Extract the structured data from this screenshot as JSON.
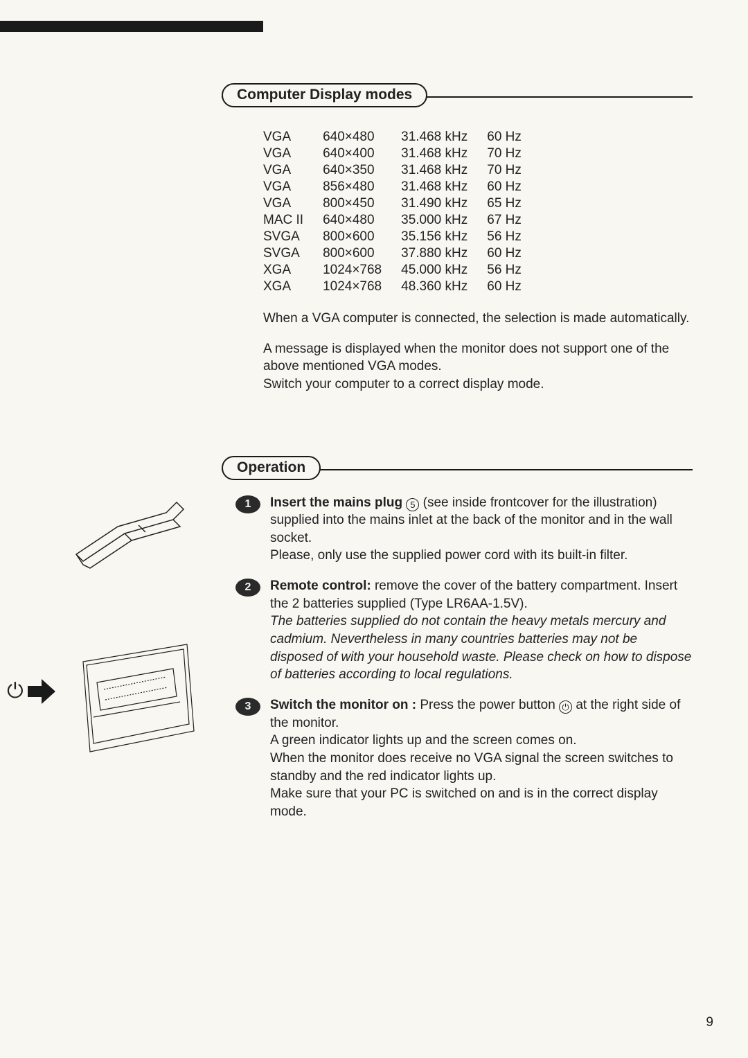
{
  "page_number": "9",
  "section1": {
    "title": "Computer Display modes",
    "table": {
      "rows": [
        [
          "VGA",
          "640×480",
          "31.468 kHz",
          "60 Hz"
        ],
        [
          "VGA",
          "640×400",
          "31.468 kHz",
          "70 Hz"
        ],
        [
          "VGA",
          "640×350",
          "31.468 kHz",
          "70 Hz"
        ],
        [
          "VGA",
          "856×480",
          "31.468 kHz",
          "60 Hz"
        ],
        [
          "VGA",
          "800×450",
          "31.490 kHz",
          "65 Hz"
        ],
        [
          "MAC II",
          "640×480",
          "35.000 kHz",
          "67 Hz"
        ],
        [
          "SVGA",
          "800×600",
          "35.156 kHz",
          "56 Hz"
        ],
        [
          "SVGA",
          "800×600",
          "37.880 kHz",
          "60 Hz"
        ],
        [
          "XGA",
          "1024×768",
          "45.000 kHz",
          "56 Hz"
        ],
        [
          "XGA",
          "1024×768",
          "48.360 kHz",
          "60 Hz"
        ]
      ]
    },
    "para1": "When a VGA computer is connected, the selection is made automatically.",
    "para2": "A message is displayed when the monitor does not support one of the above mentioned VGA modes.",
    "para3": "Switch your computer to a correct display mode."
  },
  "section2": {
    "title": "Operation",
    "steps": [
      {
        "num": "1",
        "bold": "Insert the mains plug",
        "circle": "5",
        "rest1": " (see inside frontcover for the illustration) supplied into the mains inlet at the back of the monitor and in the wall socket.",
        "rest2": "Please, only use the supplied power cord with its built-in filter."
      },
      {
        "num": "2",
        "bold": "Remote control:",
        "rest1": " remove the cover of the battery compartment. Insert the 2 batteries supplied (Type LR6AA-1.5V).",
        "italic": "The batteries supplied do not contain the heavy metals mercury and cadmium. Nevertheless in many countries batteries may not be disposed of with your household waste. Please check on how to dispose of batteries according to local regulations."
      },
      {
        "num": "3",
        "bold": "Switch the monitor on :",
        "rest1": " Press the power button ",
        "power_after": " at the right side of the monitor.",
        "rest2": "A green indicator lights up and the screen comes on.",
        "rest3": "When the monitor does receive no VGA signal the screen switches to standby and the red indicator lights up.",
        "rest4": "Make sure that your PC is switched on and is in the correct display mode."
      }
    ]
  },
  "colors": {
    "bg": "#f9f7f2",
    "text": "#222222",
    "header_border": "#1a1a1a"
  }
}
